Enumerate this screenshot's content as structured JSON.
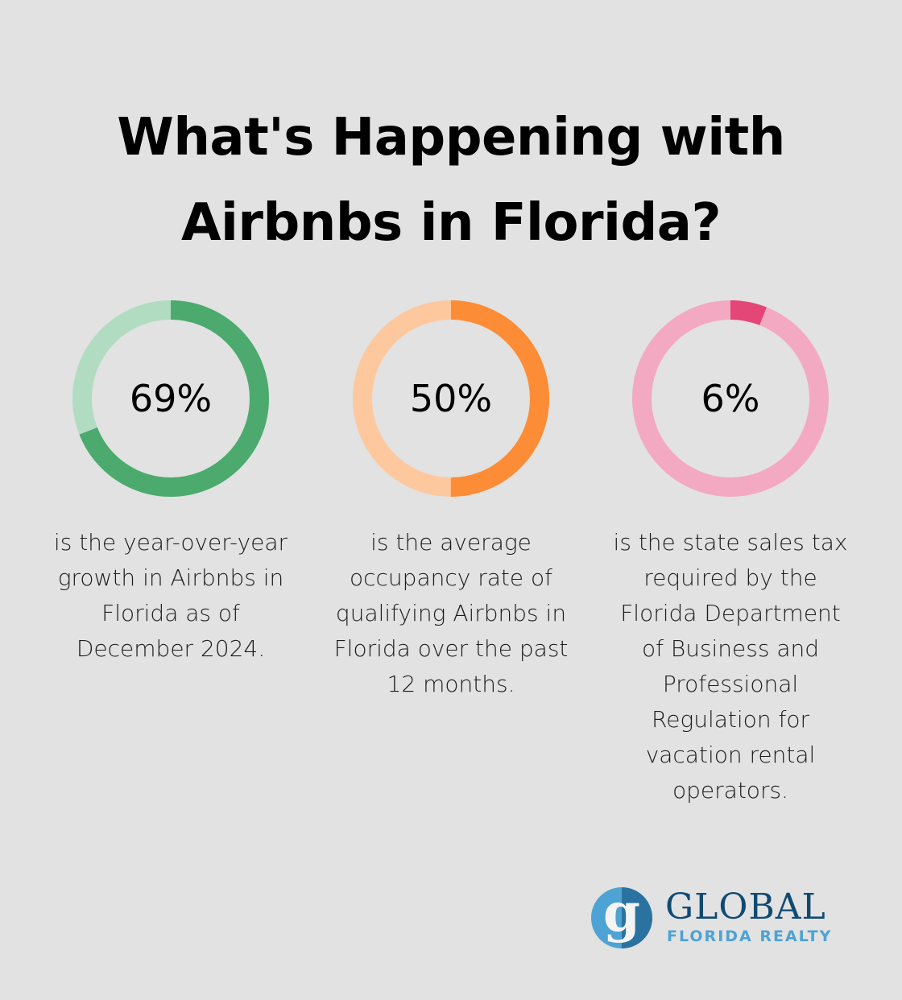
{
  "title": {
    "line1": "What's Happening with",
    "line2": "Airbnbs in Florida?"
  },
  "stats": [
    {
      "value": "69%",
      "percent": 69,
      "description": "is the year-over-year growth in Airbnbs in Florida as of December 2024.",
      "colors": {
        "fill": "#4caa6e",
        "track": "#b1dcc2"
      }
    },
    {
      "value": "50%",
      "percent": 50,
      "description": "is the average occupancy rate of qualifying Airbnbs in Florida over the past 12 months.",
      "colors": {
        "fill": "#fd8c37",
        "track": "#fec89e"
      }
    },
    {
      "value": "6%",
      "percent": 6,
      "description": "is the state sales tax required by the Florida Department of Business and Professional Regulation for vacation rental operators.",
      "colors": {
        "fill": "#e44677",
        "track": "#f3a9c1"
      }
    }
  ],
  "logo": {
    "letter": "g",
    "name": "GLOBAL",
    "tagline": "FLORIDA REALTY",
    "colors": {
      "dark": "#0f4a73",
      "light": "#4da3d4"
    }
  },
  "chart_data": {
    "type": "pie",
    "title": "What's Happening with Airbnbs in Florida?",
    "charts": [
      {
        "label": "Year-over-year growth in Airbnbs in Florida (Dec 2024)",
        "value": 69,
        "remainder": 31
      },
      {
        "label": "Average occupancy rate of qualifying Airbnbs in Florida (past 12 months)",
        "value": 50,
        "remainder": 50
      },
      {
        "label": "State sales tax for vacation rental operators",
        "value": 6,
        "remainder": 94
      }
    ],
    "style": "donut"
  }
}
